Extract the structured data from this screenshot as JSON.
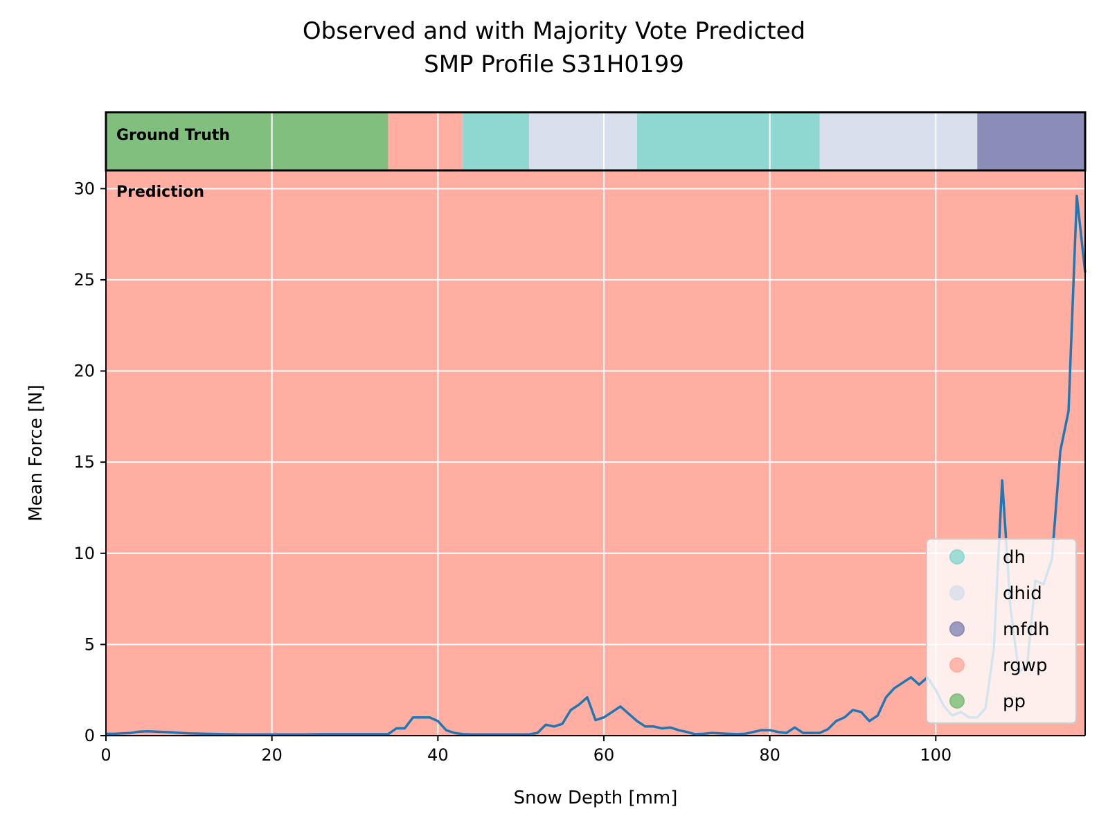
{
  "chart_data": {
    "type": "line",
    "title": "Observed and with Majority Vote Predicted",
    "subtitle": "SMP Profile S31H0199",
    "xlabel": "Snow Depth [mm]",
    "ylabel": "Mean Force [N]",
    "xlim": [
      0,
      118
    ],
    "ylim": [
      0,
      31
    ],
    "xticks": [
      0,
      20,
      40,
      60,
      80,
      100
    ],
    "yticks": [
      0,
      5,
      10,
      15,
      20,
      25,
      30
    ],
    "grid": true,
    "legend_position": "lower-right",
    "ground_truth_label": "Ground Truth",
    "prediction_label": "Prediction",
    "classes": [
      {
        "name": "dh",
        "color": "#8fd8d2"
      },
      {
        "name": "dhid",
        "color": "#d7e0ec"
      },
      {
        "name": "mfdh",
        "color": "#8b8cb8"
      },
      {
        "name": "rgwp",
        "color": "#ffaea1"
      },
      {
        "name": "pp",
        "color": "#80bf7d"
      }
    ],
    "ground_truth": [
      {
        "start": 0,
        "end": 34,
        "label": "pp"
      },
      {
        "start": 34,
        "end": 43,
        "label": "rgwp"
      },
      {
        "start": 43,
        "end": 51,
        "label": "dh"
      },
      {
        "start": 51,
        "end": 64,
        "label": "dhid"
      },
      {
        "start": 64,
        "end": 86,
        "label": "dh"
      },
      {
        "start": 86,
        "end": 105,
        "label": "dhid"
      },
      {
        "start": 105,
        "end": 118,
        "label": "mfdh"
      }
    ],
    "prediction": [
      {
        "start": 0,
        "end": 118,
        "label": "rgwp"
      }
    ],
    "series": [
      {
        "color": "#1f77b4",
        "x": [
          0,
          1,
          2,
          3,
          4,
          5,
          6,
          7,
          8,
          9,
          10,
          12,
          14,
          16,
          18,
          20,
          22,
          24,
          26,
          28,
          30,
          32,
          34,
          35,
          36,
          37,
          38,
          39,
          40,
          41,
          42,
          43,
          44,
          46,
          48,
          50,
          51,
          52,
          53,
          54,
          55,
          56,
          57,
          58,
          59,
          60,
          61,
          62,
          63,
          64,
          65,
          66,
          67,
          68,
          69,
          70,
          71,
          72,
          73,
          74,
          75,
          76,
          77,
          78,
          79,
          80,
          81,
          82,
          83,
          84,
          85,
          86,
          87,
          88,
          89,
          90,
          91,
          92,
          93,
          94,
          95,
          96,
          97,
          98,
          99,
          100,
          101,
          102,
          103,
          104,
          105,
          106,
          107,
          108,
          109,
          110,
          111,
          112,
          113,
          114,
          115,
          116,
          117,
          118
        ],
        "y": [
          0.1,
          0.1,
          0.12,
          0.15,
          0.22,
          0.24,
          0.22,
          0.2,
          0.18,
          0.15,
          0.12,
          0.1,
          0.08,
          0.07,
          0.07,
          0.07,
          0.07,
          0.07,
          0.08,
          0.08,
          0.08,
          0.08,
          0.08,
          0.4,
          0.4,
          1.0,
          1.0,
          1.0,
          0.8,
          0.3,
          0.15,
          0.08,
          0.07,
          0.07,
          0.07,
          0.07,
          0.07,
          0.15,
          0.6,
          0.5,
          0.65,
          1.4,
          1.7,
          2.1,
          0.85,
          1.0,
          1.3,
          1.6,
          1.2,
          0.8,
          0.5,
          0.5,
          0.4,
          0.45,
          0.3,
          0.2,
          0.08,
          0.1,
          0.15,
          0.12,
          0.1,
          0.08,
          0.1,
          0.2,
          0.3,
          0.3,
          0.2,
          0.15,
          0.45,
          0.15,
          0.15,
          0.15,
          0.35,
          0.8,
          1.0,
          1.4,
          1.3,
          0.8,
          1.1,
          2.1,
          2.6,
          2.9,
          3.2,
          2.8,
          3.2,
          2.5,
          1.6,
          1.1,
          1.3,
          1.0,
          1.0,
          1.5,
          4.8,
          14.0,
          7.0,
          3.5,
          3.8,
          8.5,
          8.3,
          9.7,
          15.6,
          17.8,
          29.6,
          25.4
        ]
      }
    ]
  }
}
